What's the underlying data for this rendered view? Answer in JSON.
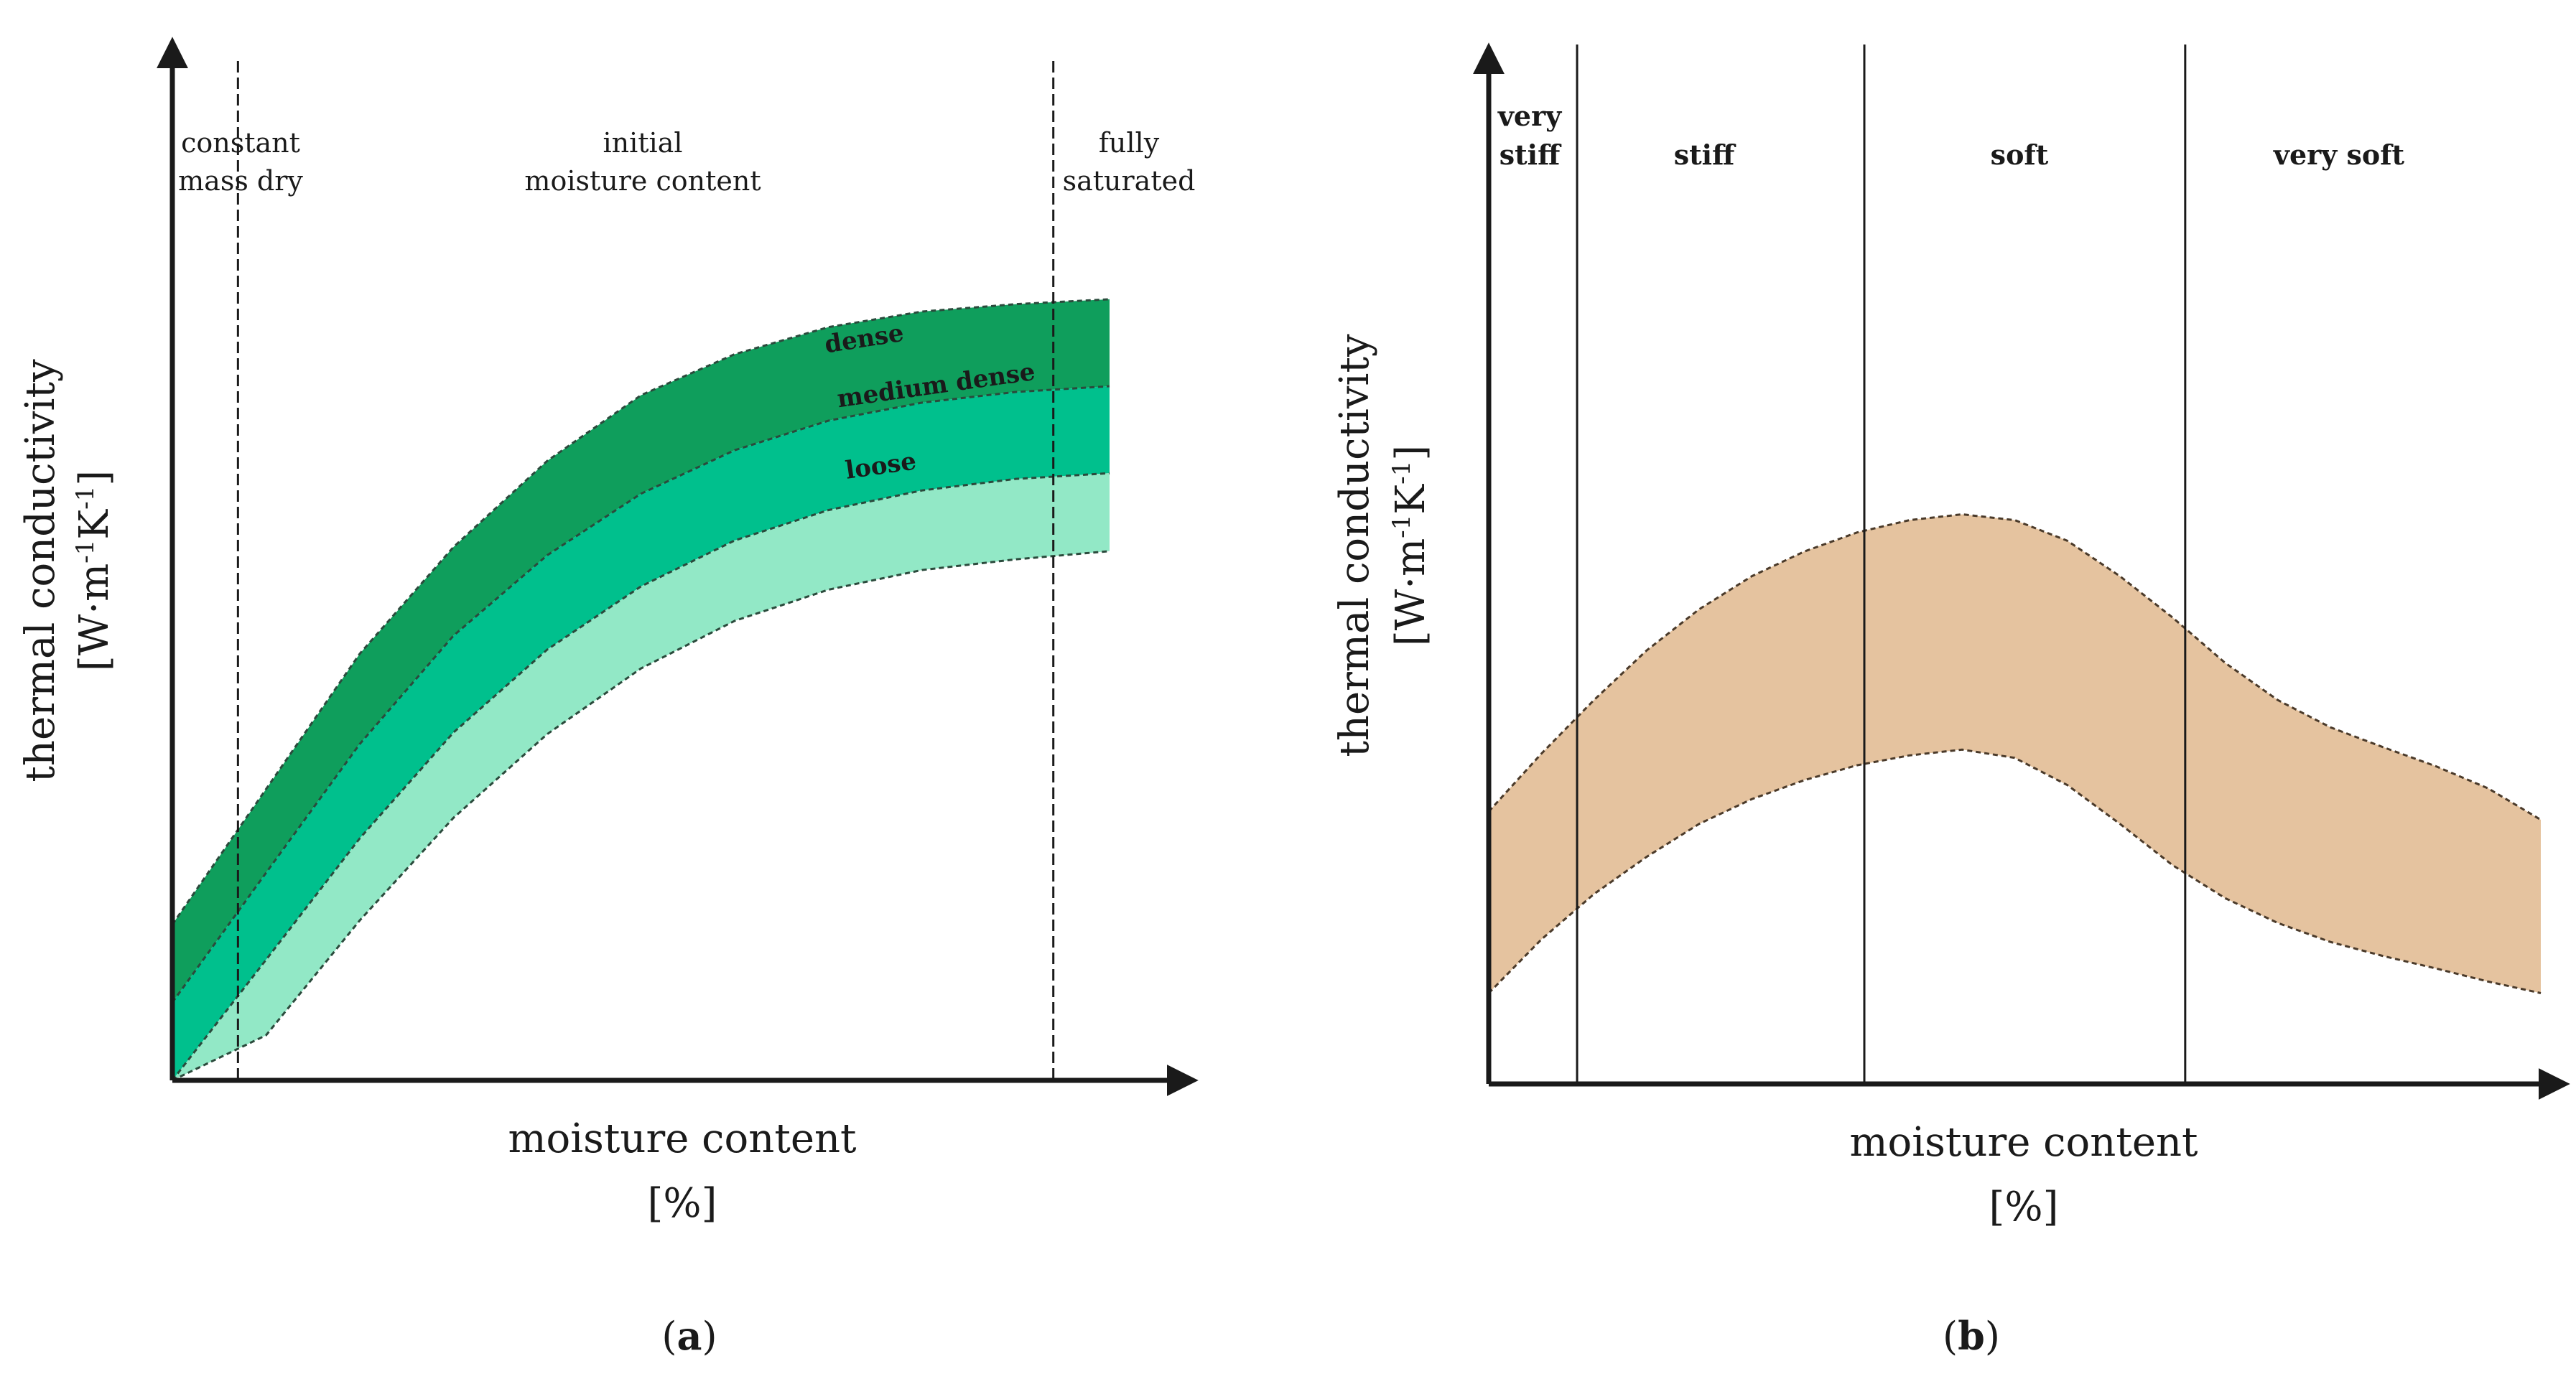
{
  "chart_data": [
    {
      "type": "area",
      "panel_label": "a",
      "title": "",
      "xlabel": "moisture content",
      "xunit": "[%]",
      "ylabel": "thermal conductivity",
      "yunit_base": "W·m",
      "yunit_exp1": "-1",
      "yunit_mid": "K",
      "yunit_exp2": "-1",
      "xlim": [
        0,
        100
      ],
      "ylim": [
        0,
        100
      ],
      "boundaries": [
        7,
        94
      ],
      "zones": [
        {
          "label_lines": [
            "constant",
            "mass dry"
          ],
          "x": 7
        },
        {
          "label_lines": [
            "initial",
            "moisture content"
          ],
          "x": 50
        },
        {
          "label_lines": [
            "fully",
            "saturated"
          ],
          "x": 100
        }
      ],
      "x": [
        0,
        10,
        20,
        30,
        40,
        50,
        60,
        70,
        80,
        90,
        100
      ],
      "series": [
        {
          "name": "dense",
          "color": "#0f9e5c",
          "upper": [
            19,
            35.5,
            52,
            65,
            75.5,
            83.5,
            88.5,
            91.8,
            93.7,
            94.6,
            95.2
          ],
          "lower": [
            9.5,
            25.3,
            41,
            54.2,
            64,
            71.5,
            76.8,
            80.4,
            82.6,
            83.9,
            84.6
          ]
        },
        {
          "name": "medium dense",
          "color": "#00c08d",
          "upper": [
            9.5,
            25.3,
            41,
            54.2,
            64,
            71.5,
            76.8,
            80.4,
            82.6,
            83.9,
            84.6
          ],
          "lower": [
            0,
            14.7,
            29.5,
            42.4,
            52.5,
            60.2,
            65.8,
            69.5,
            71.9,
            73.3,
            74
          ]
        },
        {
          "name": "loose",
          "color": "#92e8c6",
          "upper": [
            0,
            14.7,
            29.5,
            42.4,
            52.5,
            60.2,
            65.8,
            69.5,
            71.9,
            73.3,
            74
          ],
          "lower": [
            0,
            5.5,
            19.5,
            32,
            42.2,
            50.2,
            56,
            59.8,
            62.2,
            63.5,
            64.5
          ]
        }
      ]
    },
    {
      "type": "area",
      "panel_label": "b",
      "title": "",
      "xlabel": "moisture content",
      "xunit": "[%]",
      "ylabel": "thermal conductivity",
      "yunit_base": "W·m",
      "yunit_exp1": "-1",
      "yunit_mid": "K",
      "yunit_exp2": "-1",
      "xlim": [
        0,
        100
      ],
      "ylim": [
        0,
        100
      ],
      "boundaries": [
        8.4,
        35.7,
        66.2
      ],
      "zones": [
        {
          "label_lines": [
            "very",
            "stiff"
          ]
        },
        {
          "label_lines": [
            "stiff"
          ]
        },
        {
          "label_lines": [
            "soft"
          ]
        },
        {
          "label_lines": [
            "very soft"
          ]
        }
      ],
      "band": {
        "color": "#e5c39f",
        "x": [
          0,
          5,
          10,
          15,
          20,
          25,
          30,
          35,
          40,
          45,
          50,
          55,
          60,
          65,
          70,
          75,
          80,
          85,
          90,
          95,
          100
        ],
        "upper": [
          33,
          40,
          46.5,
          52.5,
          57.5,
          61.5,
          64.5,
          66.8,
          68.3,
          69,
          68.3,
          65.8,
          61.5,
          56.5,
          51,
          46.5,
          43.2,
          40.8,
          38.5,
          35.8,
          32
        ],
        "lower": [
          11,
          17.5,
          23,
          27.5,
          31.5,
          34.5,
          36.8,
          38.6,
          39.8,
          40.5,
          39.5,
          36.2,
          31.5,
          26.5,
          22.5,
          19.5,
          17.2,
          15.5,
          14,
          12.4,
          11
        ]
      }
    }
  ]
}
